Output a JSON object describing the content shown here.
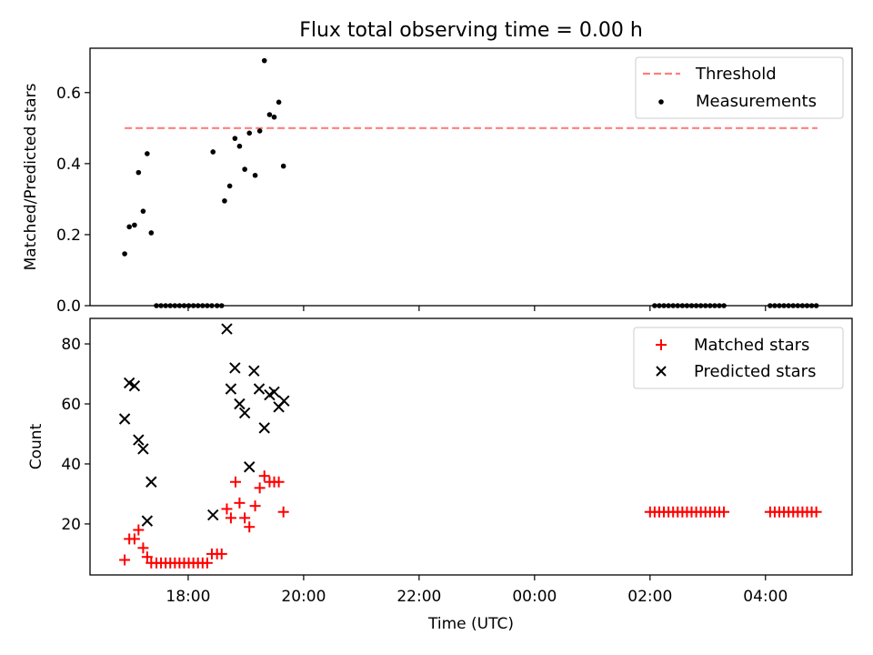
{
  "title": "Flux total observing time = 0.00 h",
  "chart_data": [
    {
      "type": "scatter",
      "ylabel": "Matched/Predicted stars",
      "xlim": [
        16.3,
        29.5
      ],
      "ylim": [
        0,
        0.725
      ],
      "yticks": [
        "0.0",
        "0.2",
        "0.4",
        "0.6"
      ],
      "legend_position": "top-right",
      "threshold": {
        "name": "Threshold",
        "value": 0.5,
        "x": [
          16.9,
          28.9
        ],
        "color": "#ff7f7f"
      },
      "series": [
        {
          "name": "Measurements",
          "color": "#000000",
          "points": [
            [
              16.9,
              0.146
            ],
            [
              16.98,
              0.222
            ],
            [
              17.07,
              0.227
            ],
            [
              17.14,
              0.375
            ],
            [
              17.22,
              0.266
            ],
            [
              17.29,
              0.428
            ],
            [
              17.36,
              0.205
            ],
            [
              18.43,
              0.433
            ],
            [
              18.63,
              0.295
            ],
            [
              18.72,
              0.337
            ],
            [
              18.81,
              0.471
            ],
            [
              18.89,
              0.449
            ],
            [
              18.98,
              0.384
            ],
            [
              19.06,
              0.486
            ],
            [
              19.16,
              0.367
            ],
            [
              19.24,
              0.492
            ],
            [
              19.32,
              0.69
            ],
            [
              19.41,
              0.538
            ],
            [
              19.49,
              0.531
            ],
            [
              19.57,
              0.573
            ],
            [
              19.65,
              0.393
            ],
            [
              17.45,
              0
            ],
            [
              17.53,
              0
            ],
            [
              17.61,
              0
            ],
            [
              17.69,
              0
            ],
            [
              17.77,
              0
            ],
            [
              17.85,
              0
            ],
            [
              17.93,
              0
            ],
            [
              18.01,
              0
            ],
            [
              18.09,
              0
            ],
            [
              18.17,
              0
            ],
            [
              18.25,
              0
            ],
            [
              18.33,
              0
            ],
            [
              18.41,
              0
            ],
            [
              18.5,
              0
            ],
            [
              18.58,
              0
            ],
            [
              26.08,
              0
            ],
            [
              26.16,
              0
            ],
            [
              26.24,
              0
            ],
            [
              26.32,
              0
            ],
            [
              26.4,
              0
            ],
            [
              26.48,
              0
            ],
            [
              26.56,
              0
            ],
            [
              26.64,
              0
            ],
            [
              26.72,
              0
            ],
            [
              26.8,
              0
            ],
            [
              26.88,
              0
            ],
            [
              26.96,
              0
            ],
            [
              27.04,
              0
            ],
            [
              27.12,
              0
            ],
            [
              27.2,
              0
            ],
            [
              27.28,
              0
            ],
            [
              28.08,
              0
            ],
            [
              28.16,
              0
            ],
            [
              28.24,
              0
            ],
            [
              28.32,
              0
            ],
            [
              28.4,
              0
            ],
            [
              28.48,
              0
            ],
            [
              28.56,
              0
            ],
            [
              28.64,
              0
            ],
            [
              28.72,
              0
            ],
            [
              28.8,
              0
            ],
            [
              28.88,
              0
            ]
          ]
        }
      ]
    },
    {
      "type": "scatter",
      "xlabel": "Time (UTC)",
      "ylabel": "Count",
      "xlim": [
        16.3,
        29.5
      ],
      "ylim": [
        3,
        88.5
      ],
      "xticks": [
        {
          "x": 18,
          "label": "18:00"
        },
        {
          "x": 20,
          "label": "20:00"
        },
        {
          "x": 22,
          "label": "22:00"
        },
        {
          "x": 24,
          "label": "00:00"
        },
        {
          "x": 26,
          "label": "02:00"
        },
        {
          "x": 28,
          "label": "04:00"
        }
      ],
      "yticks": [
        20,
        40,
        60,
        80
      ],
      "legend_position": "top-right",
      "series": [
        {
          "name": "Matched stars",
          "color": "#ff0000",
          "marker": "plus",
          "points": [
            [
              16.9,
              8
            ],
            [
              16.98,
              15
            ],
            [
              17.07,
              15
            ],
            [
              17.14,
              18
            ],
            [
              17.22,
              12
            ],
            [
              17.29,
              9
            ],
            [
              17.36,
              7
            ],
            [
              17.45,
              7
            ],
            [
              17.53,
              7
            ],
            [
              17.61,
              7
            ],
            [
              17.69,
              7
            ],
            [
              17.77,
              7
            ],
            [
              17.85,
              7
            ],
            [
              17.93,
              7
            ],
            [
              18.01,
              7
            ],
            [
              18.09,
              7
            ],
            [
              18.17,
              7
            ],
            [
              18.25,
              7
            ],
            [
              18.33,
              7
            ],
            [
              18.41,
              10
            ],
            [
              18.5,
              10
            ],
            [
              18.58,
              10
            ],
            [
              18.67,
              25
            ],
            [
              18.74,
              22
            ],
            [
              18.82,
              34
            ],
            [
              18.89,
              27
            ],
            [
              18.98,
              22
            ],
            [
              19.06,
              19
            ],
            [
              19.16,
              26
            ],
            [
              19.24,
              32
            ],
            [
              19.32,
              36
            ],
            [
              19.41,
              34
            ],
            [
              19.49,
              34
            ],
            [
              19.57,
              34
            ],
            [
              19.65,
              24
            ],
            [
              26.0,
              24
            ],
            [
              26.08,
              24
            ],
            [
              26.16,
              24
            ],
            [
              26.24,
              24
            ],
            [
              26.32,
              24
            ],
            [
              26.4,
              24
            ],
            [
              26.48,
              24
            ],
            [
              26.56,
              24
            ],
            [
              26.64,
              24
            ],
            [
              26.72,
              24
            ],
            [
              26.8,
              24
            ],
            [
              26.88,
              24
            ],
            [
              26.96,
              24
            ],
            [
              27.04,
              24
            ],
            [
              27.12,
              24
            ],
            [
              27.2,
              24
            ],
            [
              27.28,
              24
            ],
            [
              28.08,
              24
            ],
            [
              28.16,
              24
            ],
            [
              28.24,
              24
            ],
            [
              28.32,
              24
            ],
            [
              28.4,
              24
            ],
            [
              28.48,
              24
            ],
            [
              28.56,
              24
            ],
            [
              28.64,
              24
            ],
            [
              28.72,
              24
            ],
            [
              28.8,
              24
            ],
            [
              28.88,
              24
            ]
          ]
        },
        {
          "name": "Predicted stars",
          "color": "#000000",
          "marker": "x",
          "points": [
            [
              16.9,
              55
            ],
            [
              16.98,
              67
            ],
            [
              17.07,
              66
            ],
            [
              17.14,
              48
            ],
            [
              17.22,
              45
            ],
            [
              17.29,
              21
            ],
            [
              17.36,
              34
            ],
            [
              18.43,
              23
            ],
            [
              18.67,
              85
            ],
            [
              18.74,
              65
            ],
            [
              18.81,
              72
            ],
            [
              18.89,
              60
            ],
            [
              18.98,
              57
            ],
            [
              19.06,
              39
            ],
            [
              19.14,
              71
            ],
            [
              19.23,
              65
            ],
            [
              19.32,
              52
            ],
            [
              19.41,
              63
            ],
            [
              19.49,
              64
            ],
            [
              19.57,
              59
            ],
            [
              19.66,
              61
            ]
          ]
        }
      ]
    }
  ]
}
